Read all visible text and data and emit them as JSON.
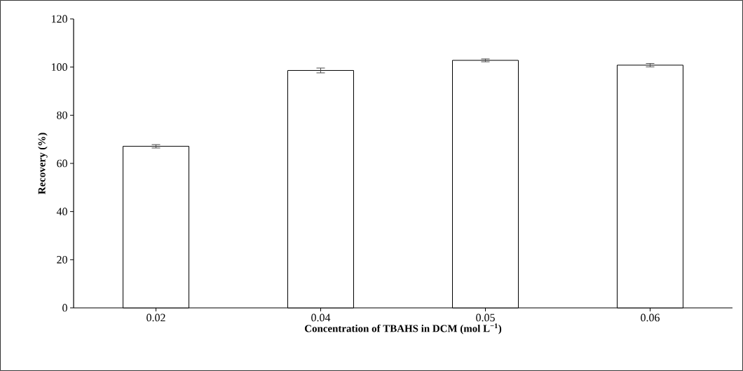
{
  "chart_data": {
    "type": "bar",
    "xlabel": "Concentration of TBAHS in DCM (mol L$^{−1}$)",
    "ylabel": "Recovery (%)",
    "categories": [
      "0.02",
      "0.04",
      "0.05",
      "0.06"
    ],
    "values": [
      67.1,
      98.6,
      102.8,
      100.8
    ],
    "errors": [
      0.7,
      1.0,
      0.6,
      0.7
    ],
    "color": "#ffffff",
    "ylim": [
      0,
      120
    ],
    "yticks": [
      0,
      20,
      40,
      60,
      80,
      100,
      120
    ],
    "grid": false
  }
}
